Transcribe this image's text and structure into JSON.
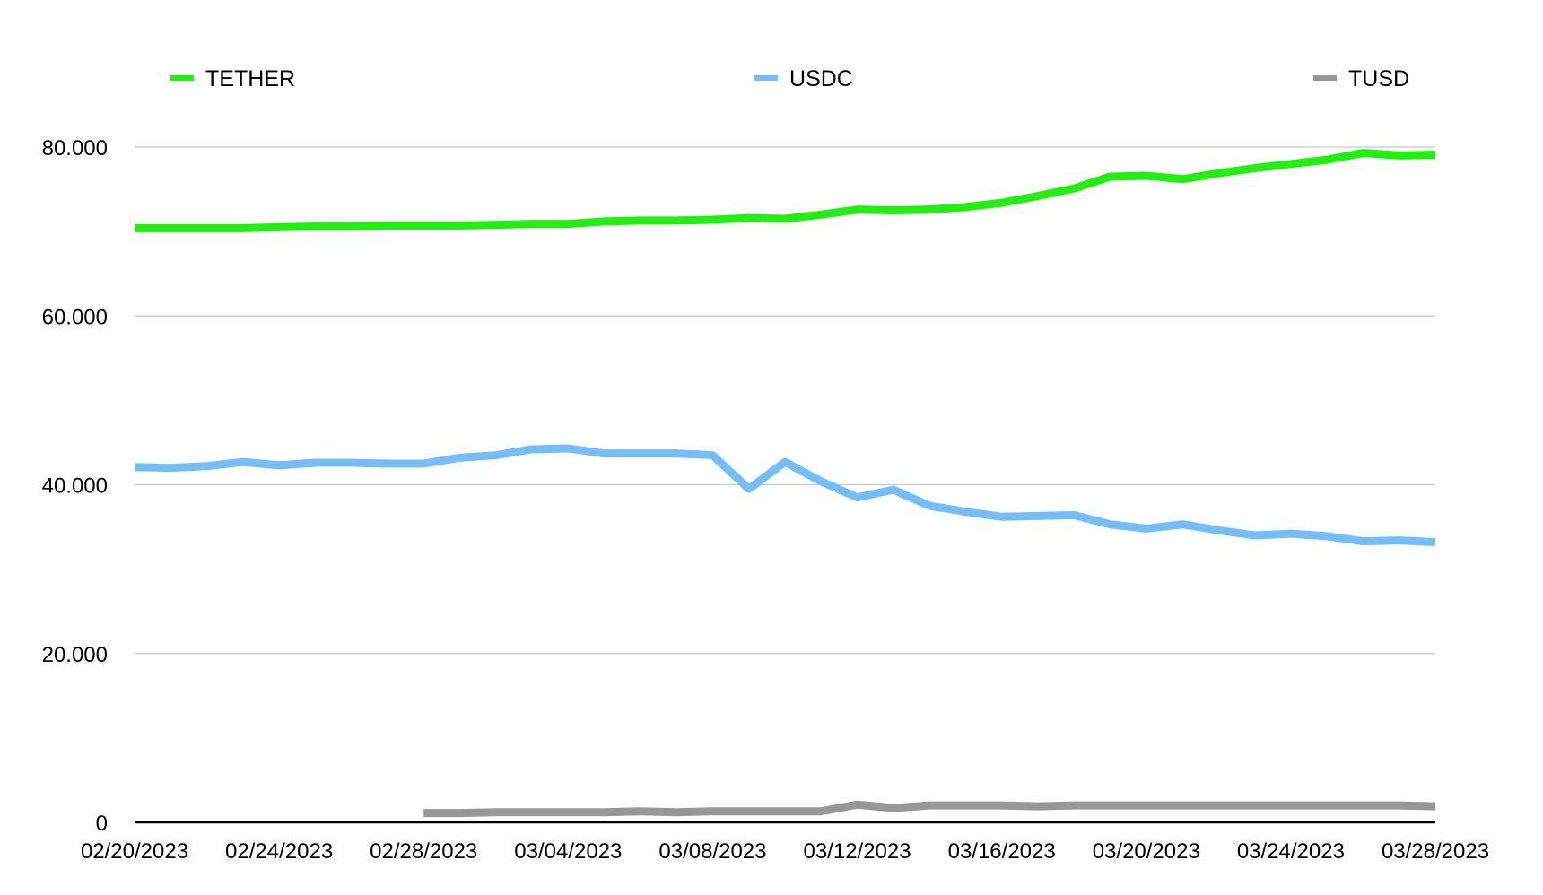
{
  "chart_data": {
    "type": "line",
    "title": "",
    "xlabel": "",
    "ylabel": "",
    "x": [
      "02/20/2023",
      "02/21/2023",
      "02/22/2023",
      "02/23/2023",
      "02/24/2023",
      "02/25/2023",
      "02/26/2023",
      "02/27/2023",
      "02/28/2023",
      "03/01/2023",
      "03/02/2023",
      "03/03/2023",
      "03/04/2023",
      "03/05/2023",
      "03/06/2023",
      "03/07/2023",
      "03/08/2023",
      "03/09/2023",
      "03/10/2023",
      "03/11/2023",
      "03/12/2023",
      "03/13/2023",
      "03/14/2023",
      "03/15/2023",
      "03/16/2023",
      "03/17/2023",
      "03/18/2023",
      "03/19/2023",
      "03/20/2023",
      "03/21/2023",
      "03/22/2023",
      "03/23/2023",
      "03/24/2023",
      "03/25/2023",
      "03/26/2023",
      "03/27/2023",
      "03/28/2023"
    ],
    "x_tick_labels": [
      "02/20/2023",
      "02/24/2023",
      "02/28/2023",
      "03/04/2023",
      "03/08/2023",
      "03/12/2023",
      "03/16/2023",
      "03/20/2023",
      "03/24/2023",
      "03/28/2023"
    ],
    "y_tick_labels": [
      "0",
      "20.000",
      "40.000",
      "60.000",
      "80.000"
    ],
    "y_ticks": [
      0,
      20000,
      40000,
      60000,
      80000
    ],
    "ylim": [
      0,
      80000
    ],
    "grid": true,
    "legend_position": "top",
    "series": [
      {
        "name": "TETHER",
        "color": "#22ee11",
        "values": [
          70400,
          70400,
          70400,
          70400,
          70500,
          70600,
          70600,
          70700,
          70700,
          70700,
          70800,
          70900,
          70900,
          71200,
          71300,
          71300,
          71400,
          71600,
          71500,
          72000,
          72600,
          72500,
          72600,
          72900,
          73400,
          74200,
          75100,
          76500,
          76600,
          76200,
          76900,
          77500,
          78000,
          78500,
          79300,
          79000,
          79100
        ]
      },
      {
        "name": "USDC",
        "color": "#74bdf7",
        "values": [
          42100,
          42000,
          42200,
          42700,
          42300,
          42600,
          42600,
          42500,
          42500,
          43200,
          43500,
          44200,
          44300,
          43700,
          43700,
          43700,
          43500,
          39500,
          42700,
          40400,
          38500,
          39400,
          37500,
          36800,
          36200,
          36300,
          36400,
          35300,
          34800,
          35300,
          34600,
          34000,
          34200,
          33900,
          33300,
          33400,
          33200
        ]
      },
      {
        "name": "TUSD",
        "color": "#979797",
        "values": [
          null,
          null,
          null,
          null,
          null,
          null,
          null,
          null,
          1100,
          1100,
          1200,
          1200,
          1200,
          1200,
          1300,
          1200,
          1300,
          1300,
          1300,
          1300,
          2100,
          1700,
          2000,
          2000,
          2000,
          1900,
          2000,
          2000,
          2000,
          2000,
          2000,
          2000,
          2000,
          2000,
          2000,
          2000,
          1900
        ]
      }
    ]
  }
}
